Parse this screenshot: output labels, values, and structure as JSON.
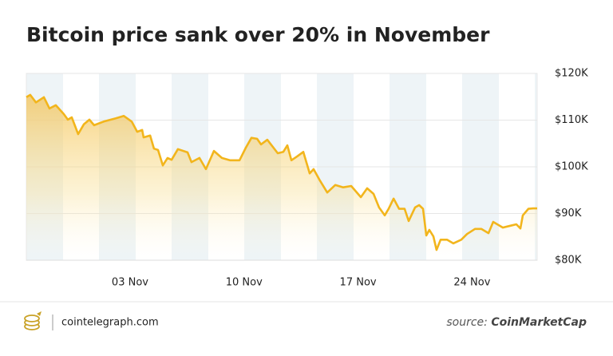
{
  "chart_data": {
    "type": "area",
    "title": "Bitcoin price sank over 20% in November",
    "x": [
      -3.37,
      -3.13,
      -2.78,
      -2.29,
      -1.95,
      -1.56,
      -1.07,
      -0.82,
      -0.58,
      -0.19,
      0.16,
      0.5,
      0.79,
      1.38,
      2.12,
      2.61,
      3.1,
      3.44,
      3.74,
      3.83,
      4.23,
      4.47,
      4.72,
      5.01,
      5.3,
      5.55,
      5.94,
      6.53,
      6.77,
      7.26,
      7.66,
      8.15,
      8.64,
      9.13,
      9.72,
      10.11,
      10.45,
      10.8,
      11.04,
      11.43,
      12.07,
      12.41,
      12.66,
      12.91,
      13.25,
      13.64,
      14.03,
      14.27,
      14.62,
      15.11,
      15.6,
      16.09,
      16.58,
      17.17,
      17.56,
      17.95,
      18.29,
      18.64,
      18.88,
      19.18,
      19.52,
      19.86,
      20.11,
      20.5,
      20.75,
      20.99,
      21.19,
      21.38,
      21.63,
      21.82,
      22.07,
      22.46,
      22.85,
      23.34,
      23.69,
      24.18,
      24.57,
      25.01,
      25.3,
      25.89,
      26.38,
      26.72,
      26.97,
      27.12,
      27.46,
      27.75,
      28.0
    ],
    "values": [
      114900,
      115400,
      113800,
      114900,
      112500,
      113200,
      111300,
      110100,
      110600,
      107000,
      109100,
      110100,
      108900,
      109700,
      110400,
      110900,
      109700,
      107500,
      107900,
      106300,
      106700,
      103900,
      103600,
      100300,
      101900,
      101500,
      103800,
      103100,
      101000,
      101900,
      99500,
      103400,
      101900,
      101400,
      101400,
      104100,
      106200,
      106000,
      104800,
      105800,
      102900,
      103200,
      104600,
      101400,
      102200,
      103200,
      98600,
      99500,
      97300,
      94500,
      96100,
      95600,
      95900,
      93500,
      95400,
      94200,
      91300,
      89600,
      91000,
      93200,
      91000,
      91000,
      88400,
      91300,
      91800,
      91000,
      85300,
      86500,
      85100,
      82200,
      84400,
      84400,
      83600,
      84400,
      85600,
      86700,
      86700,
      85800,
      88200,
      87000,
      87400,
      87700,
      86800,
      89600,
      91000,
      91100,
      91100
    ],
    "color": "#f2b51c",
    "xlim": [
      -3.37,
      28.0
    ],
    "xticks": [
      {
        "value": 3,
        "label": "03 Nov"
      },
      {
        "value": 10,
        "label": "10 Nov"
      },
      {
        "value": 17,
        "label": "17 Nov"
      },
      {
        "value": 24,
        "label": "24 Nov"
      }
    ],
    "ylim": [
      80000,
      120000
    ],
    "yticks": [
      {
        "value": 80000,
        "label": "$80K"
      },
      {
        "value": 90000,
        "label": "$90K"
      },
      {
        "value": 100000,
        "label": "$100K"
      },
      {
        "value": 110000,
        "label": "$110K"
      },
      {
        "value": 120000,
        "label": "$120K"
      }
    ],
    "grid": true
  },
  "footer": {
    "brand": "cointelegraph.com",
    "source_label": "source:",
    "source": "CoinMarketCap"
  }
}
